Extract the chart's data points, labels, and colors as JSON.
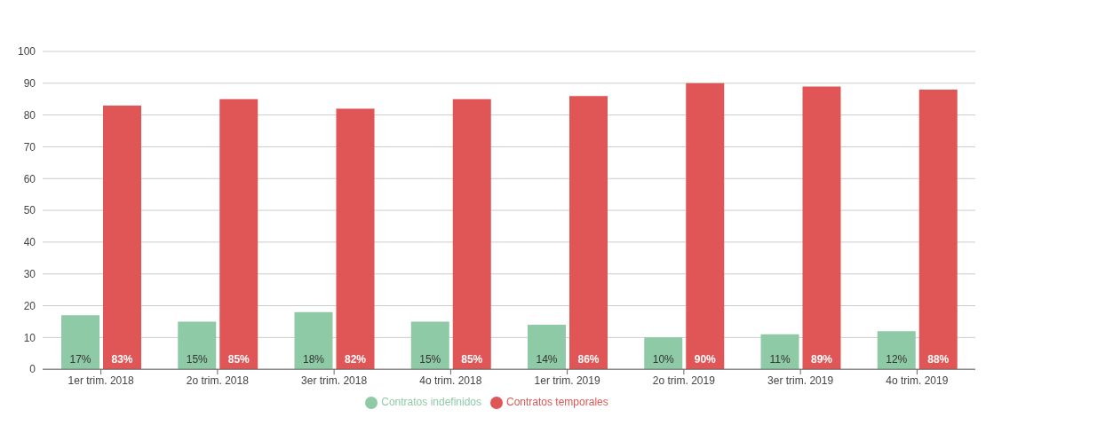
{
  "chart_data": {
    "type": "bar",
    "categories": [
      "1er trim. 2018",
      "2o trim. 2018",
      "3er trim. 2018",
      "4o trim. 2018",
      "1er trim. 2019",
      "2o trim. 2019",
      "3er trim. 2019",
      "4o trim. 2019"
    ],
    "series": [
      {
        "name": "Contratos indefinidos",
        "color": "#8fcaa6",
        "values": [
          17,
          15,
          18,
          15,
          14,
          10,
          11,
          12
        ],
        "value_labels": [
          "17%",
          "15%",
          "18%",
          "15%",
          "14%",
          "10%",
          "11%",
          "12%"
        ]
      },
      {
        "name": "Contratos temporales",
        "color": "#e05555",
        "values": [
          83,
          85,
          82,
          85,
          86,
          90,
          89,
          88
        ],
        "value_labels": [
          "83%",
          "85%",
          "82%",
          "85%",
          "86%",
          "90%",
          "89%",
          "88%"
        ]
      }
    ],
    "ylim": [
      0,
      100
    ],
    "yticks": [
      0,
      10,
      20,
      30,
      40,
      50,
      60,
      70,
      80,
      90,
      100
    ],
    "grid": "y",
    "legend": "bottom",
    "marker": "circle"
  }
}
